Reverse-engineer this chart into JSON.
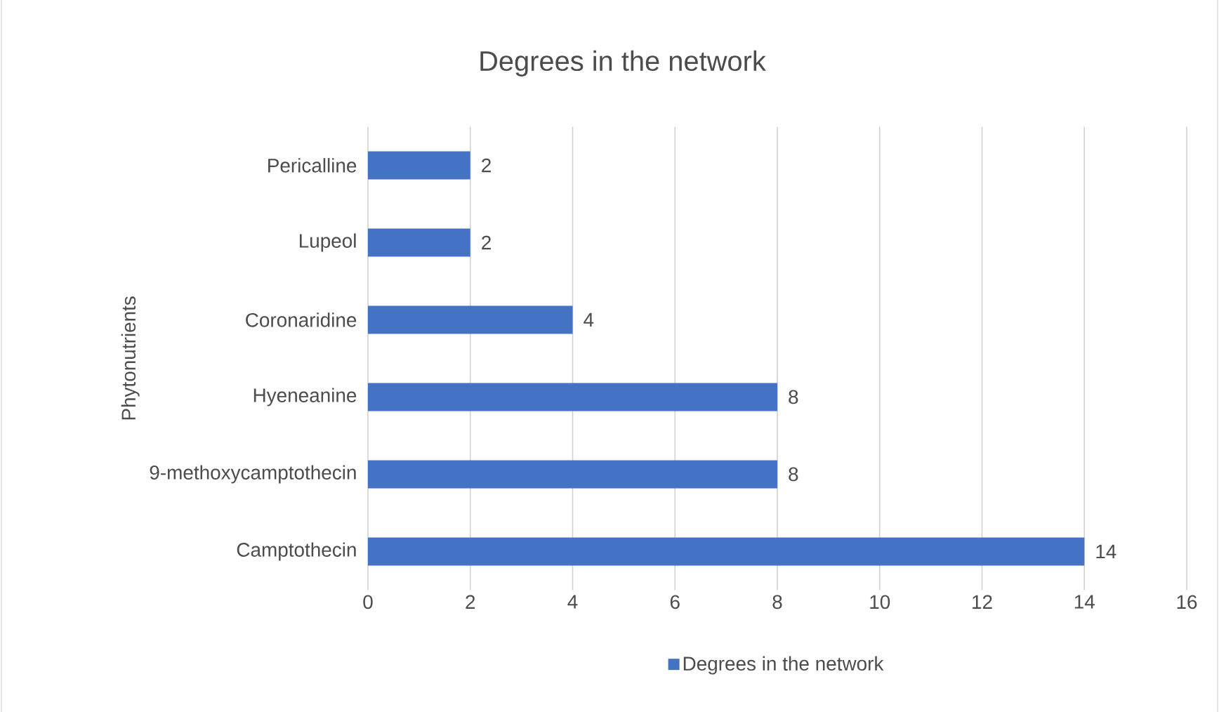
{
  "chart_data": {
    "type": "bar",
    "orientation": "horizontal",
    "title": "Degrees in the network",
    "ylabel": "Phytonutrients",
    "categories": [
      "Pericalline",
      "Lupeol",
      "Coronaridine",
      "Hyeneanine",
      "9-methoxycamptothecin",
      "Camptothecin"
    ],
    "series": [
      {
        "name": "Degrees in the network",
        "color": "#4472c4",
        "values": [
          2,
          2,
          4,
          8,
          8,
          14
        ]
      }
    ],
    "xlim": [
      0,
      16
    ],
    "xticks": [
      0,
      2,
      4,
      6,
      8,
      10,
      12,
      14,
      16
    ],
    "grid": "x",
    "legend": "bottom",
    "data_labels": true
  }
}
